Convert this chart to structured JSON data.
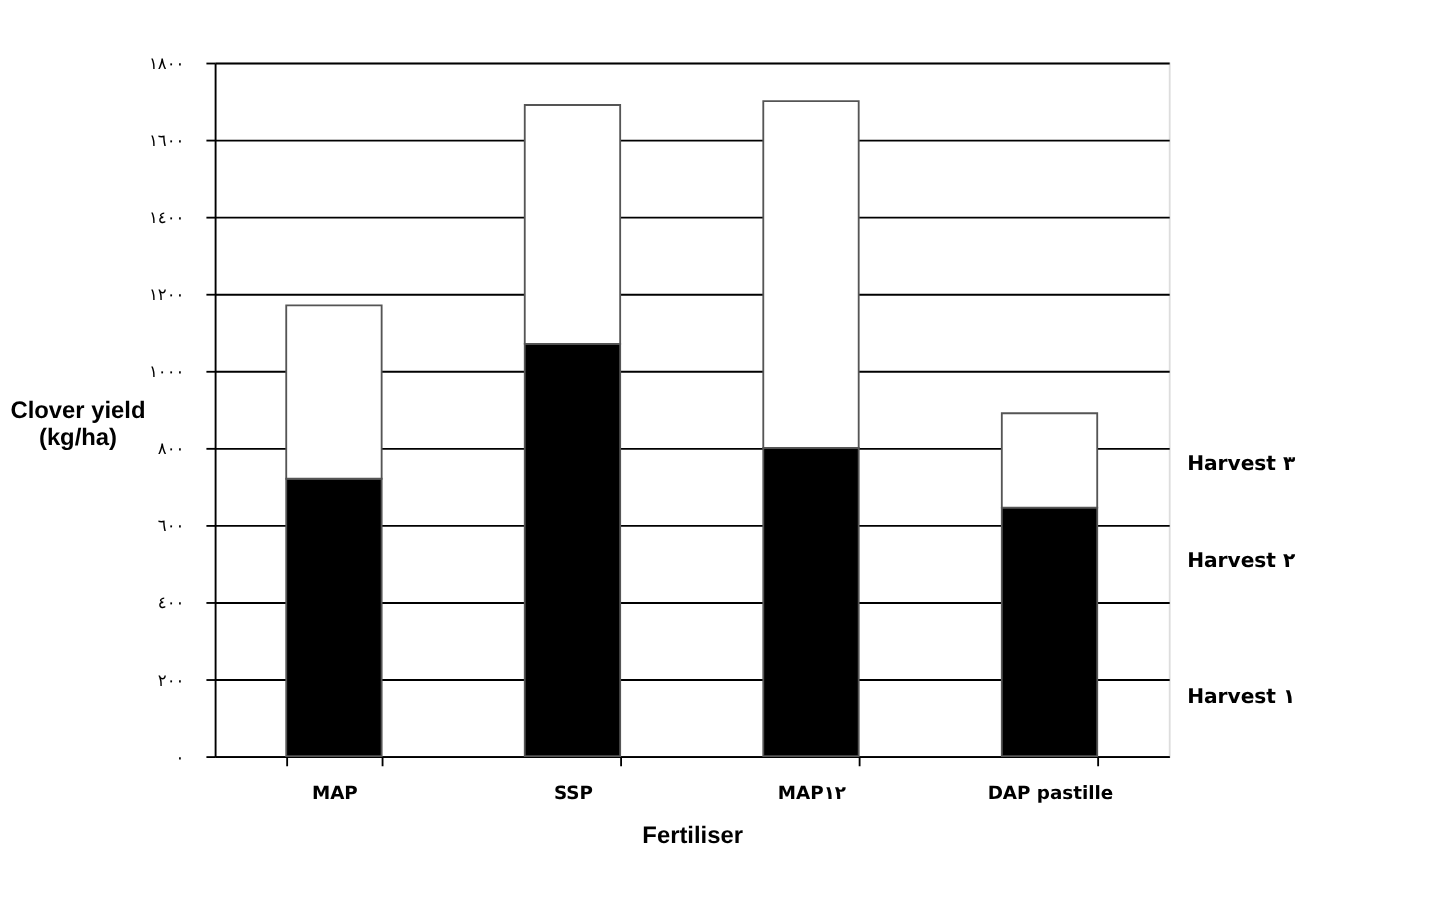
{
  "chart_data": {
    "type": "bar",
    "stacked": true,
    "categories": [
      "MAP",
      "SSP",
      "MAP١٢",
      "DAP pastille"
    ],
    "series": [
      {
        "color": "#000000",
        "values": [
          720,
          1070,
          800,
          645
        ]
      },
      {
        "color": "#ffffff",
        "values": [
          450,
          620,
          900,
          245
        ]
      }
    ],
    "xlabel": "Fertiliser",
    "ylabel": "Clover yield (kg/ha)",
    "ylim": [
      0,
      1800
    ],
    "yticks": [
      {
        "value": 0,
        "label": "٠"
      },
      {
        "value": 200,
        "label": "٢٠٠"
      },
      {
        "value": 400,
        "label": "٤٠٠"
      },
      {
        "value": 600,
        "label": "٦٠٠"
      },
      {
        "value": 800,
        "label": "٨٠٠"
      },
      {
        "value": 1000,
        "label": "١٠٠٠"
      },
      {
        "value": 1200,
        "label": "١٢٠٠"
      },
      {
        "value": 1400,
        "label": "١٤٠٠"
      },
      {
        "value": 1600,
        "label": "١٦٠٠"
      },
      {
        "value": 1800,
        "label": "١٨٠٠"
      }
    ],
    "annotations": [
      "Harvest ٣",
      "Harvest ٢",
      "Harvest ١"
    ],
    "grid": "y",
    "legend": false
  }
}
